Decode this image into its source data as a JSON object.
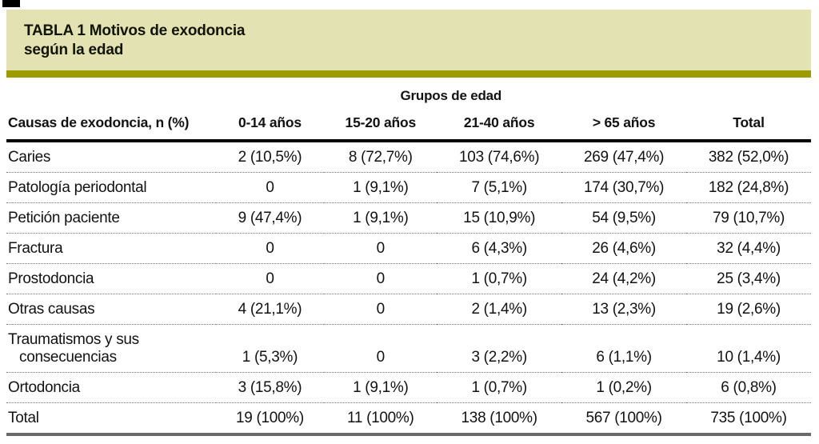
{
  "title_band": {
    "line1": "TABLA 1 Motivos de exodoncia",
    "line2": "según la edad",
    "background": "#e2e2b3",
    "accent_bar_color": "#9c9c00"
  },
  "table": {
    "group_header": "Grupos de edad",
    "columns": [
      "Causas de exodoncia, n (%)",
      "0-14 años",
      "15-20 años",
      "21-40 años",
      "> 65 años",
      "Total"
    ],
    "rows": [
      {
        "label": "Caries",
        "values": [
          "2 (10,5%)",
          "8 (72,7%)",
          "103 (74,6%)",
          "269 (47,4%)",
          "382 (52,0%)"
        ]
      },
      {
        "label": "Patología periodontal",
        "values": [
          "0",
          "1 (9,1%)",
          "7 (5,1%)",
          "174 (30,7%)",
          "182 (24,8%)"
        ]
      },
      {
        "label": "Petición paciente",
        "values": [
          "9 (47,4%)",
          "1 (9,1%)",
          "15 (10,9%)",
          "54 (9,5%)",
          "79 (10,7%)"
        ]
      },
      {
        "label": "Fractura",
        "values": [
          "0",
          "0",
          "6 (4,3%)",
          "26 (4,6%)",
          "32 (4,4%)"
        ]
      },
      {
        "label": "Prostodoncia",
        "values": [
          "0",
          "0",
          "1 (0,7%)",
          "24 (4,2%)",
          "25 (3,4%)"
        ]
      },
      {
        "label": "Otras causas",
        "values": [
          "4 (21,1%)",
          "0",
          "2 (1,4%)",
          "13 (2,3%)",
          "19 (2,6%)"
        ]
      },
      {
        "label": "Traumatismos y sus",
        "label2": "consecuencias",
        "values": [
          "1 (5,3%)",
          "0",
          "3 (2,2%)",
          "6 (1,1%)",
          "10 (1,4%)"
        ]
      },
      {
        "label": "Ortodoncia",
        "values": [
          "3 (15,8%)",
          "1 (9,1%)",
          "1 (0,7%)",
          "1 (0,2%)",
          "6 (0,8%)"
        ]
      },
      {
        "label": "Total",
        "values": [
          "19 (100%)",
          "11 (100%)",
          "138 (100%)",
          "567 (100%)",
          "735 (100%)"
        ]
      }
    ]
  },
  "colors": {
    "band_khaki": "#e2e2b3",
    "accent_olive": "#9c9c00",
    "header_rule_black": "#000000",
    "bottom_rule_gray": "#696969",
    "dotted_separator": "#777777",
    "text": "#121212"
  }
}
